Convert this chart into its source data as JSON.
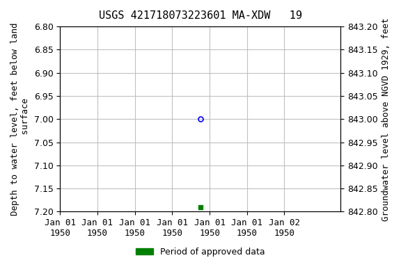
{
  "title": "USGS 421718073223601 MA-XDW   19",
  "xlabel_dates": [
    "Jan 01\n1950",
    "Jan 01\n1950",
    "Jan 01\n1950",
    "Jan 01\n1950",
    "Jan 01\n1950",
    "Jan 01\n1950",
    "Jan 02\n1950"
  ],
  "ylabel_left": "Depth to water level, feet below land\n surface",
  "ylabel_right": "Groundwater level above NGVD 1929, feet",
  "ylim_left": [
    6.8,
    7.2
  ],
  "ylim_right": [
    842.8,
    843.2
  ],
  "yticks_left": [
    6.8,
    6.85,
    6.9,
    6.95,
    7.0,
    7.05,
    7.1,
    7.15,
    7.2
  ],
  "yticks_right": [
    842.8,
    842.85,
    842.9,
    842.95,
    843.0,
    843.05,
    843.1,
    843.15,
    843.2
  ],
  "data_blue_open_circle": {
    "date": "1950-01-04",
    "value": 7.0
  },
  "data_green_square": {
    "date": "1950-01-04",
    "value": 7.19
  },
  "legend_label": "Period of approved data",
  "legend_color": "#008000",
  "bg_color": "#ffffff",
  "grid_color": "#c0c0c0",
  "title_fontsize": 11,
  "tick_fontsize": 9,
  "label_fontsize": 9
}
